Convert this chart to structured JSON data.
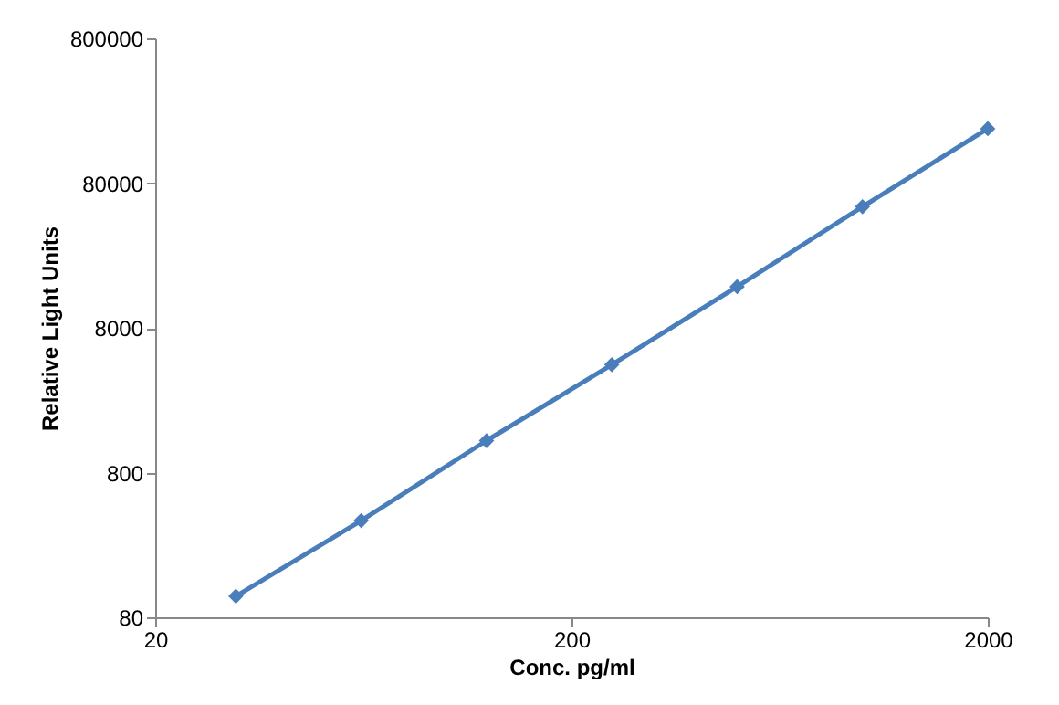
{
  "chart_data": {
    "type": "line",
    "xlabel": "Conc. pg/ml",
    "ylabel": "Relative Light Units",
    "x": [
      31.25,
      62.5,
      125,
      250,
      500,
      1000,
      2000
    ],
    "series": [
      {
        "color": "#4a7ebb",
        "values": [
          112,
          373,
          1330,
          4450,
          15400,
          55000,
          190000
        ]
      }
    ],
    "log": "xy",
    "xlim": [
      20,
      2000
    ],
    "xticks": [
      20,
      200,
      2000
    ],
    "ylim": [
      80,
      800000
    ],
    "yticks": [
      80,
      800,
      8000,
      80000,
      800000
    ],
    "grid": false,
    "legend": false,
    "marker": "diamond",
    "line_style": "solid"
  }
}
